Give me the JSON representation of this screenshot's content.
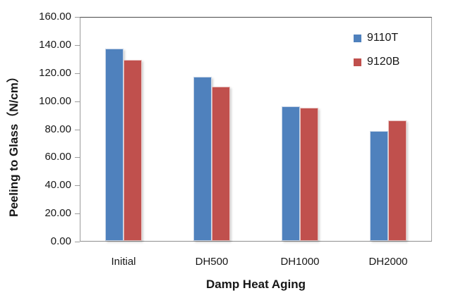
{
  "chart_data": {
    "type": "bar",
    "title": "",
    "categories": [
      "Initial",
      "DH500",
      "DH1000",
      "DH2000"
    ],
    "series": [
      {
        "name": "9110T",
        "color": "#4f81bd",
        "edge_color": "#c9d6e8",
        "values": [
          137,
          117,
          96,
          78
        ]
      },
      {
        "name": "9120B",
        "color": "#c0504d",
        "edge_color": "#e8c2c0",
        "values": [
          129,
          110,
          95,
          86
        ]
      }
    ],
    "xlabel": "Damp Heat Aging",
    "ylabel": "Peeling to Glass（N/cm）",
    "ylim": [
      0,
      160
    ],
    "ytick_step": 20,
    "ytick_labels": [
      "160.00",
      "140.00",
      "120.00",
      "100.00",
      "80.00",
      "60.00",
      "40.00",
      "20.00",
      "0.00"
    ],
    "grid": false,
    "legend_position": "inside-top-right"
  }
}
